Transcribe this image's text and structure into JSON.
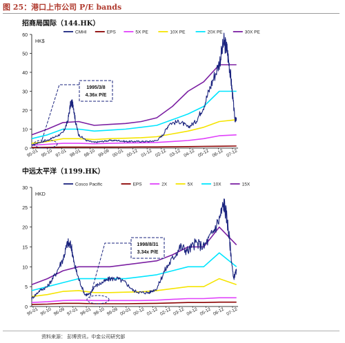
{
  "figure": {
    "title": "图 25：港口上市公司 P/E bands",
    "source": "资料来源：   彭博资讯，中金公司研究部"
  },
  "chart_data": [
    {
      "type": "line",
      "title": "招商局国际（144.HK）",
      "ylabel": "HK$",
      "ylim": [
        0,
        60
      ],
      "yticks": [
        0,
        10,
        20,
        30,
        40,
        50,
        60
      ],
      "x_tick_labels": [
        "95-01",
        "95-10",
        "97-01",
        "98-01",
        "98-10",
        "99-09",
        "00-01",
        "00-12",
        "01-12",
        "02-12",
        "03-12",
        "04-12",
        "05-12",
        "06-12",
        "07-12"
      ],
      "legend_position": "top",
      "series": [
        {
          "name": "CMHI",
          "color": "#1a237e",
          "x": [
            95.0,
            95.5,
            96.0,
            96.5,
            97.0,
            97.3,
            97.5,
            97.65,
            97.8,
            98.0,
            98.5,
            99.0,
            99.5,
            100.0,
            100.5,
            101.0,
            101.5,
            102.0,
            102.5,
            103.0,
            103.4,
            103.8,
            104.5,
            105.0,
            105.5,
            106.0,
            106.5,
            107.0,
            107.3,
            107.5,
            107.7,
            107.85,
            108.0,
            108.1
          ],
          "values": [
            1.5,
            3,
            4,
            6,
            8,
            14,
            24,
            23,
            14,
            7,
            4,
            3,
            3.5,
            4,
            4,
            3.5,
            3.5,
            3.5,
            3.5,
            4,
            7,
            13,
            14,
            11,
            14,
            22,
            34,
            45,
            56,
            52,
            40,
            28,
            15,
            15
          ]
        },
        {
          "name": "EPS",
          "color": "#8b0000",
          "x": [
            95,
            96,
            97,
            98,
            99,
            100,
            101,
            102,
            103,
            104,
            105,
            106,
            107,
            108.1
          ],
          "values": [
            0.3,
            0.4,
            0.5,
            0.5,
            0.5,
            0.5,
            0.55,
            0.6,
            0.6,
            0.7,
            0.8,
            0.9,
            1.0,
            1.1
          ]
        },
        {
          "name": "5X PE",
          "color": "#e040fb",
          "x": [
            95,
            96,
            97,
            98,
            99,
            100,
            101,
            102,
            103,
            104,
            105,
            106,
            107,
            108.1
          ],
          "values": [
            1.5,
            2,
            2.5,
            2.5,
            2.3,
            2.5,
            2.7,
            2.8,
            3,
            3.5,
            4,
            5,
            6.5,
            7
          ]
        },
        {
          "name": "10X PE",
          "color": "#f5e400",
          "x": [
            95,
            96,
            97,
            98,
            99,
            100,
            101,
            102,
            103,
            104,
            105,
            106,
            107,
            108.1
          ],
          "values": [
            2.5,
            3.5,
            5,
            5,
            4.5,
            5,
            5.2,
            5.5,
            6,
            7.5,
            9,
            11,
            14,
            15
          ]
        },
        {
          "name": "20X PE",
          "color": "#00e5ff",
          "x": [
            95,
            96,
            97,
            98,
            99,
            100,
            101,
            102,
            103,
            104,
            105,
            106,
            107,
            108.1
          ],
          "values": [
            5,
            7,
            10,
            10,
            9,
            9.5,
            10,
            11,
            12,
            15,
            18,
            22,
            30,
            30
          ]
        },
        {
          "name": "30X PE",
          "color": "#7b1fa2",
          "x": [
            95,
            96,
            97,
            98,
            99,
            100,
            101,
            102,
            103,
            104,
            105,
            106,
            107,
            108.1
          ],
          "values": [
            7,
            10,
            13.5,
            14,
            12,
            12.5,
            13,
            14,
            16,
            22,
            30,
            35,
            44,
            44
          ]
        }
      ],
      "annotations": [
        {
          "text": "1995/3/8",
          "subtext": "4.36x P/E"
        }
      ]
    },
    {
      "type": "line",
      "title": "中远太平洋（1199.HK）",
      "ylabel": "HKD",
      "ylim": [
        0,
        30
      ],
      "yticks": [
        0,
        5,
        10,
        15,
        20,
        25,
        30
      ],
      "x_tick_labels": [
        "95-01",
        "95-10",
        "96-09",
        "97-01",
        "98-01",
        "98-10",
        "99-09",
        "00-01",
        "00-12",
        "01-12",
        "02-12",
        "03-12",
        "04-12",
        "05-12",
        "06-12",
        "07-12"
      ],
      "legend_position": "top",
      "series": [
        {
          "name": "Cosco Pacific",
          "color": "#1a237e",
          "x": [
            95.0,
            95.5,
            96.0,
            96.5,
            97.0,
            97.3,
            97.55,
            97.7,
            98.0,
            98.4,
            98.7,
            99.0,
            99.5,
            100.0,
            100.5,
            101.0,
            101.5,
            102.0,
            102.5,
            103.0,
            103.5,
            104.0,
            104.5,
            105.0,
            105.5,
            106.0,
            106.5,
            107.0,
            107.3,
            107.5,
            107.7,
            107.9,
            108.1
          ],
          "values": [
            2,
            4,
            5,
            8,
            12,
            16,
            15,
            11,
            7,
            3,
            3,
            5,
            6,
            7,
            7,
            6,
            4,
            3.5,
            3.5,
            4.5,
            9,
            12,
            15,
            14,
            16,
            15,
            18,
            22,
            26,
            22,
            15,
            7,
            9
          ]
        },
        {
          "name": "EPS",
          "color": "#8b0000",
          "x": [
            95,
            96,
            97,
            98,
            99,
            100,
            101,
            102,
            103,
            104,
            105,
            106,
            107,
            108.1
          ],
          "values": [
            0.5,
            0.6,
            0.8,
            0.8,
            0.7,
            0.7,
            0.7,
            0.75,
            0.8,
            0.9,
            1.0,
            1.0,
            1.1,
            1.1
          ]
        },
        {
          "name": "2X",
          "color": "#e040fb",
          "x": [
            95,
            96,
            97,
            98,
            99,
            100,
            101,
            102,
            103,
            104,
            105,
            106,
            107,
            108.1
          ],
          "values": [
            1,
            1.2,
            1.5,
            1.6,
            1.5,
            1.5,
            1.5,
            1.5,
            1.6,
            1.8,
            2,
            2,
            2.2,
            2.2
          ]
        },
        {
          "name": "5X",
          "color": "#f5e400",
          "x": [
            95,
            96,
            97,
            98,
            99,
            100,
            101,
            102,
            103,
            104,
            105,
            106,
            107,
            108.1
          ],
          "values": [
            2.5,
            3,
            3.8,
            4,
            3.5,
            3.5,
            3.6,
            3.7,
            4,
            4.5,
            5,
            5,
            7,
            5.5
          ]
        },
        {
          "name": "10X",
          "color": "#00e5ff",
          "x": [
            95,
            96,
            97,
            98,
            99,
            100,
            101,
            102,
            103,
            104,
            105,
            106,
            107,
            108.1
          ],
          "values": [
            4,
            5,
            6,
            7,
            7,
            7,
            7,
            7.5,
            8,
            9,
            10,
            10,
            13.5,
            10
          ]
        },
        {
          "name": "15X",
          "color": "#7b1fa2",
          "x": [
            95,
            96,
            97,
            98,
            99,
            100,
            101,
            102,
            103,
            104,
            105,
            106,
            107,
            108.1
          ],
          "values": [
            5.5,
            7,
            9,
            10,
            10,
            10,
            10.5,
            11,
            11.5,
            13,
            15,
            15,
            20,
            15.5
          ]
        }
      ],
      "annotations": [
        {
          "text": "1998/8/31",
          "subtext": "3.34x P/E"
        }
      ]
    }
  ]
}
